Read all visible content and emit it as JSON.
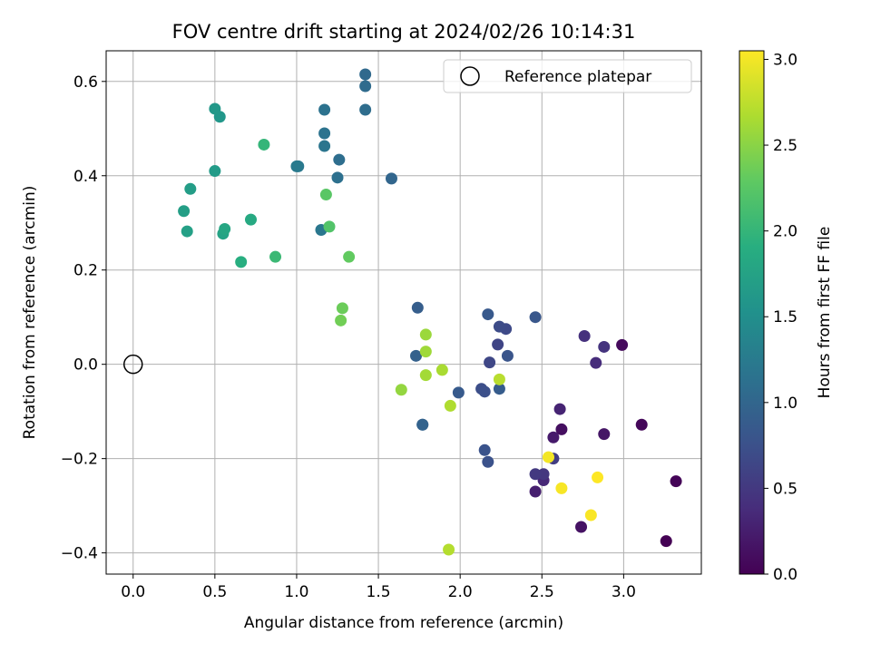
{
  "chart_data": {
    "type": "scatter",
    "title": "FOV centre drift starting at 2024/02/26 10:14:31",
    "xlabel": "Angular distance from reference (arcmin)",
    "ylabel": "Rotation from reference (arcmin)",
    "xlim": [
      -0.165,
      3.475
    ],
    "ylim": [
      -0.445,
      0.665
    ],
    "xticks": [
      0.0,
      0.5,
      1.0,
      1.5,
      2.0,
      2.5,
      3.0
    ],
    "xtick_labels": [
      "0.0",
      "0.5",
      "1.0",
      "1.5",
      "2.0",
      "2.5",
      "3.0"
    ],
    "yticks": [
      -0.4,
      -0.2,
      0.0,
      0.2,
      0.4,
      0.6
    ],
    "ytick_labels": [
      "−0.4",
      "−0.2",
      "0.0",
      "0.2",
      "0.4",
      "0.6"
    ],
    "grid": true,
    "legend": {
      "placement": "upper right",
      "entries": [
        "Reference platepar"
      ]
    },
    "reference_point": {
      "label": "Reference platepar",
      "x": 0.0,
      "y": 0.0,
      "marker": "open-circle"
    },
    "colorbar": {
      "label": "Hours from first FF file",
      "colormap": "viridis",
      "range": [
        0.0,
        3.05
      ],
      "ticks": [
        0.0,
        0.5,
        1.0,
        1.5,
        2.0,
        2.5,
        3.0
      ],
      "tick_labels": [
        "0.0",
        "0.5",
        "1.0",
        "1.5",
        "2.0",
        "2.5",
        "3.0"
      ]
    },
    "series": [
      {
        "points": [
          {
            "x": 3.26,
            "y": -0.375,
            "c": 0.0
          },
          {
            "x": 3.32,
            "y": -0.248,
            "c": 0.03
          },
          {
            "x": 3.11,
            "y": -0.128,
            "c": 0.05
          },
          {
            "x": 2.99,
            "y": 0.041,
            "c": 0.08
          },
          {
            "x": 2.62,
            "y": -0.138,
            "c": 0.12
          },
          {
            "x": 2.74,
            "y": -0.345,
            "c": 0.15
          },
          {
            "x": 2.88,
            "y": -0.148,
            "c": 0.18
          },
          {
            "x": 2.57,
            "y": -0.155,
            "c": 0.22
          },
          {
            "x": 2.46,
            "y": -0.27,
            "c": 0.26
          },
          {
            "x": 2.61,
            "y": -0.095,
            "c": 0.3
          },
          {
            "x": 2.51,
            "y": -0.246,
            "c": 0.34
          },
          {
            "x": 2.83,
            "y": 0.003,
            "c": 0.38
          },
          {
            "x": 2.76,
            "y": 0.06,
            "c": 0.42
          },
          {
            "x": 2.88,
            "y": 0.037,
            "c": 0.45
          },
          {
            "x": 2.51,
            "y": -0.233,
            "c": 0.48
          },
          {
            "x": 2.46,
            "y": -0.233,
            "c": 0.5
          },
          {
            "x": 2.57,
            "y": -0.2,
            "c": 0.55
          },
          {
            "x": 2.23,
            "y": 0.042,
            "c": 0.62
          },
          {
            "x": 2.18,
            "y": 0.004,
            "c": 0.65
          },
          {
            "x": 2.28,
            "y": 0.075,
            "c": 0.68
          },
          {
            "x": 2.24,
            "y": 0.08,
            "c": 0.7
          },
          {
            "x": 2.13,
            "y": -0.052,
            "c": 0.72
          },
          {
            "x": 2.15,
            "y": -0.058,
            "c": 0.74
          },
          {
            "x": 2.17,
            "y": -0.207,
            "c": 0.76
          },
          {
            "x": 2.15,
            "y": -0.182,
            "c": 0.78
          },
          {
            "x": 2.29,
            "y": 0.018,
            "c": 0.8
          },
          {
            "x": 2.46,
            "y": 0.1,
            "c": 0.82
          },
          {
            "x": 2.17,
            "y": 0.106,
            "c": 0.84
          },
          {
            "x": 1.99,
            "y": -0.06,
            "c": 0.86
          },
          {
            "x": 2.24,
            "y": -0.052,
            "c": 0.88
          },
          {
            "x": 1.74,
            "y": 0.12,
            "c": 0.9
          },
          {
            "x": 1.77,
            "y": -0.128,
            "c": 0.92
          },
          {
            "x": 1.73,
            "y": 0.018,
            "c": 0.94
          },
          {
            "x": 1.77,
            "y": -0.128,
            "c": 0.96
          },
          {
            "x": 1.58,
            "y": 0.394,
            "c": 1.0
          },
          {
            "x": 1.42,
            "y": 0.615,
            "c": 1.04
          },
          {
            "x": 1.42,
            "y": 0.59,
            "c": 1.06
          },
          {
            "x": 1.42,
            "y": 0.54,
            "c": 1.08
          },
          {
            "x": 1.26,
            "y": 0.434,
            "c": 1.1
          },
          {
            "x": 1.25,
            "y": 0.396,
            "c": 1.12
          },
          {
            "x": 1.17,
            "y": 0.54,
            "c": 1.14
          },
          {
            "x": 1.17,
            "y": 0.49,
            "c": 1.16
          },
          {
            "x": 1.17,
            "y": 0.463,
            "c": 1.18
          },
          {
            "x": 1.15,
            "y": 0.285,
            "c": 1.2
          },
          {
            "x": 1.01,
            "y": 0.42,
            "c": 1.22
          },
          {
            "x": 1.0,
            "y": 0.42,
            "c": 1.24
          },
          {
            "x": 0.53,
            "y": 0.525,
            "c": 1.6
          },
          {
            "x": 0.5,
            "y": 0.542,
            "c": 1.62
          },
          {
            "x": 0.5,
            "y": 0.41,
            "c": 1.66
          },
          {
            "x": 0.35,
            "y": 0.372,
            "c": 1.68
          },
          {
            "x": 0.31,
            "y": 0.325,
            "c": 1.7
          },
          {
            "x": 0.33,
            "y": 0.282,
            "c": 1.72
          },
          {
            "x": 0.55,
            "y": 0.277,
            "c": 1.76
          },
          {
            "x": 0.56,
            "y": 0.287,
            "c": 1.8
          },
          {
            "x": 0.72,
            "y": 0.307,
            "c": 1.84
          },
          {
            "x": 0.66,
            "y": 0.217,
            "c": 1.9
          },
          {
            "x": 0.8,
            "y": 0.466,
            "c": 2.0
          },
          {
            "x": 0.87,
            "y": 0.228,
            "c": 2.05
          },
          {
            "x": 1.2,
            "y": 0.292,
            "c": 2.2
          },
          {
            "x": 1.18,
            "y": 0.36,
            "c": 2.25
          },
          {
            "x": 1.32,
            "y": 0.228,
            "c": 2.3
          },
          {
            "x": 1.28,
            "y": 0.119,
            "c": 2.35
          },
          {
            "x": 1.27,
            "y": 0.093,
            "c": 2.38
          },
          {
            "x": 1.64,
            "y": -0.054,
            "c": 2.55
          },
          {
            "x": 1.79,
            "y": 0.063,
            "c": 2.58
          },
          {
            "x": 1.79,
            "y": 0.027,
            "c": 2.6
          },
          {
            "x": 1.79,
            "y": -0.023,
            "c": 2.62
          },
          {
            "x": 1.89,
            "y": -0.012,
            "c": 2.65
          },
          {
            "x": 1.94,
            "y": -0.088,
            "c": 2.68
          },
          {
            "x": 1.93,
            "y": -0.393,
            "c": 2.7
          },
          {
            "x": 2.24,
            "y": -0.032,
            "c": 2.72
          },
          {
            "x": 2.54,
            "y": -0.197,
            "c": 3.0
          },
          {
            "x": 2.62,
            "y": -0.263,
            "c": 3.02
          },
          {
            "x": 2.8,
            "y": -0.32,
            "c": 3.03
          },
          {
            "x": 2.84,
            "y": -0.24,
            "c": 3.05
          }
        ]
      }
    ]
  }
}
